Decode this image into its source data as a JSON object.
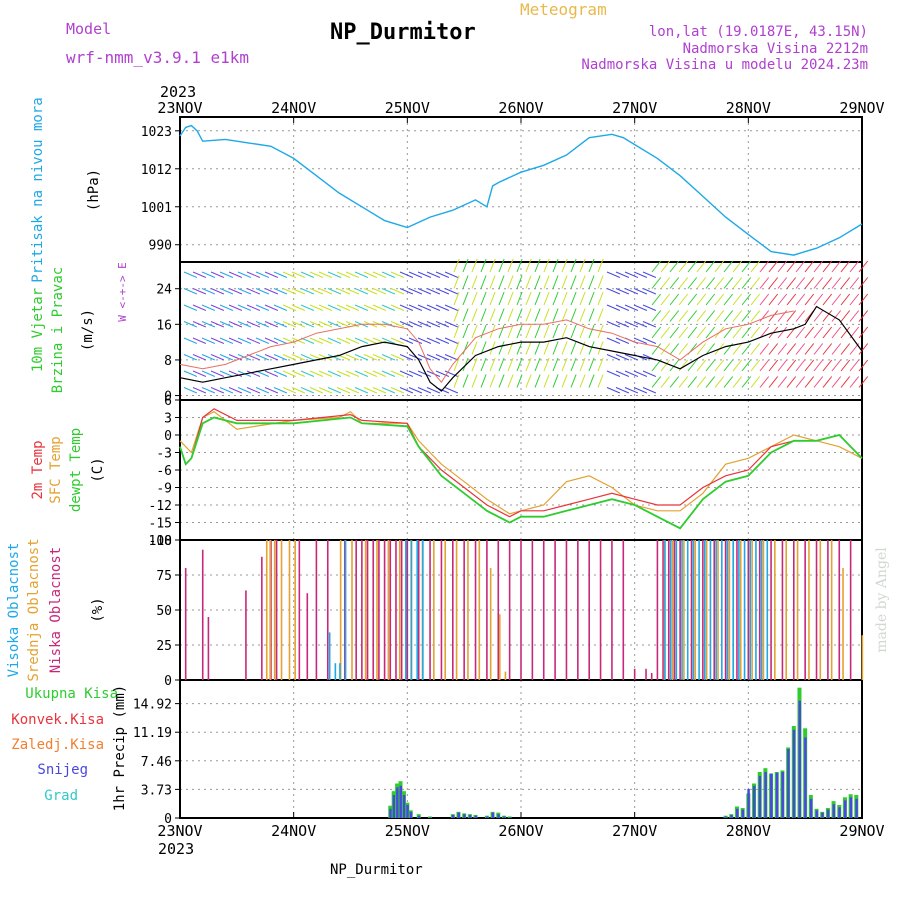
{
  "header": {
    "title": "NP_Durmitor",
    "meteogram": "Meteogram",
    "model_label": "Model",
    "model_name": "wrf-nmm_v3.9.1 e1km",
    "lonlat": "lon,lat (19.0187E, 43.15N)",
    "elevation": "Nadmorska Visina 2212m",
    "elevation_model": "Nadmorska Visina u modelu 2024.23m",
    "footer": "NP_Durmitor",
    "watermark": "made by Angel"
  },
  "colors": {
    "pressure": "#1fa8e8",
    "temp2m": "#e8343c",
    "sfc": "#e3a232",
    "dewpt": "#2fcc2f",
    "high": "#1fa8e8",
    "mid": "#e3a232",
    "low": "#c8287a",
    "total_precip": "#2fcc2f",
    "convective": "#e8343c",
    "freezing": "#f08030",
    "snow": "#4848e0",
    "graupel": "#30c8c8"
  },
  "chart_data": [
    {
      "type": "line",
      "panel": "pressure",
      "ylabel_colored": [
        "Pritisak na nivou mora"
      ],
      "ylabel": "(hPa)",
      "x_top_year": "2023",
      "x_bottom_year": "2023",
      "x_tick_labels": [
        "23NOV",
        "24NOV",
        "25NOV",
        "26NOV",
        "27NOV",
        "28NOV",
        "29NOV"
      ],
      "y_ticks": [
        990,
        1001,
        1012,
        1023
      ],
      "ylim": [
        985,
        1027
      ],
      "series": [
        {
          "key": "pressure",
          "x": [
            0,
            0.05,
            0.1,
            0.15,
            0.2,
            0.4,
            0.6,
            0.8,
            1.0,
            1.2,
            1.4,
            1.6,
            1.8,
            2.0,
            2.2,
            2.4,
            2.6,
            2.7,
            2.75,
            2.8,
            3.0,
            3.2,
            3.4,
            3.6,
            3.8,
            3.9,
            4.0,
            4.2,
            4.4,
            4.6,
            4.8,
            5.0,
            5.2,
            5.4,
            5.5,
            5.6,
            5.8,
            6.0
          ],
          "values": [
            1021.5,
            1024,
            1024.5,
            1023,
            1020,
            1020.5,
            1019.5,
            1018.5,
            1015,
            1010,
            1005,
            1001,
            997,
            995,
            998,
            1000,
            1003,
            1001,
            1007,
            1008,
            1011,
            1013,
            1016,
            1021,
            1022,
            1021,
            1019,
            1015,
            1010,
            1004,
            998,
            993,
            988,
            987,
            988,
            989,
            992,
            996
          ]
        }
      ]
    },
    {
      "type": "line",
      "panel": "wind",
      "ylabel_colored": [
        "10m Vjetar",
        "Brzina i Pravac"
      ],
      "ylabel": "(m/s)",
      "compass": "W <-+-> E",
      "y_ticks": [
        0,
        8,
        16,
        24
      ],
      "ylim": [
        -1,
        30
      ],
      "series": [
        {
          "key": "speed",
          "x": [
            0,
            0.2,
            0.4,
            0.6,
            0.8,
            1.0,
            1.2,
            1.4,
            1.6,
            1.8,
            2.0,
            2.1,
            2.2,
            2.3,
            2.4,
            2.6,
            2.8,
            3.0,
            3.2,
            3.4,
            3.6,
            3.8,
            4.0,
            4.2,
            4.4,
            4.6,
            4.8,
            5.0,
            5.2,
            5.4,
            5.5,
            5.6,
            5.8,
            6.0
          ],
          "values": [
            4,
            3,
            4,
            5,
            6,
            7,
            8,
            9,
            11,
            12,
            11,
            8,
            3,
            1,
            4,
            9,
            11,
            12,
            12,
            13,
            11,
            10,
            9,
            8,
            6,
            9,
            11,
            12,
            14,
            15,
            16,
            20,
            17,
            10
          ]
        },
        {
          "key": "gust",
          "x": [
            0,
            0.2,
            0.4,
            0.6,
            0.8,
            1.0,
            1.2,
            1.4,
            1.6,
            1.8,
            2.0,
            2.1,
            2.2,
            2.3,
            2.4,
            2.6,
            2.8,
            3.0,
            3.2,
            3.4,
            3.6,
            3.8,
            4.0,
            4.2,
            4.4,
            4.6,
            4.8,
            5.0,
            5.2,
            5.4
          ],
          "values": [
            7,
            6,
            7,
            9,
            11,
            12,
            14,
            15,
            16,
            16,
            15,
            12,
            6,
            3,
            7,
            13,
            15,
            16,
            16,
            17,
            15,
            14,
            12,
            11,
            8,
            12,
            15,
            16,
            18,
            19
          ]
        }
      ]
    },
    {
      "type": "line",
      "panel": "temperature",
      "ylabel_colored": [
        "2m Temp",
        "SFC Temp",
        "dewpt Temp"
      ],
      "ylabel": "(C)",
      "y_ticks": [
        6,
        3,
        0,
        -3,
        -6,
        -9,
        -12,
        -15,
        -18
      ],
      "ylim": [
        -18,
        6
      ],
      "series": [
        {
          "key": "temp2m",
          "x": [
            0,
            0.05,
            0.1,
            0.2,
            0.3,
            0.5,
            1.0,
            1.5,
            1.6,
            2.0,
            2.1,
            2.3,
            2.5,
            2.7,
            2.9,
            3.0,
            3.2,
            3.4,
            3.6,
            3.8,
            4.0,
            4.2,
            4.4,
            4.6,
            4.8,
            5.0,
            5.2,
            5.4,
            5.6,
            5.8,
            6.0
          ],
          "values": [
            -2,
            -5,
            -4,
            3,
            4.5,
            2.5,
            2.5,
            3.5,
            2.5,
            2,
            -2,
            -6,
            -9,
            -12,
            -14,
            -13,
            -13,
            -12,
            -11,
            -10,
            -11,
            -12,
            -12,
            -9,
            -7,
            -6,
            -2,
            -1,
            -1,
            0,
            -4
          ]
        },
        {
          "key": "sfc",
          "x": [
            0,
            0.1,
            0.2,
            0.3,
            0.5,
            1.0,
            1.4,
            1.5,
            1.6,
            2.0,
            2.1,
            2.3,
            2.5,
            2.7,
            2.9,
            3.0,
            3.2,
            3.4,
            3.6,
            3.8,
            4.0,
            4.2,
            4.4,
            4.6,
            4.8,
            5.0,
            5.2,
            5.4,
            5.6,
            5.8,
            6.0
          ],
          "values": [
            -1,
            -3,
            3,
            4,
            1,
            2.5,
            3,
            4,
            2,
            2,
            -1,
            -5,
            -8,
            -11,
            -13.5,
            -13,
            -12,
            -8,
            -7,
            -9,
            -12,
            -13,
            -13,
            -10,
            -5,
            -4,
            -2,
            0,
            -1,
            -2,
            -4
          ]
        },
        {
          "key": "dewpt",
          "x": [
            0,
            0.05,
            0.1,
            0.2,
            0.3,
            0.5,
            1.0,
            1.5,
            1.6,
            2.0,
            2.1,
            2.3,
            2.5,
            2.7,
            2.9,
            3.0,
            3.2,
            3.4,
            3.6,
            3.8,
            4.0,
            4.2,
            4.4,
            4.6,
            4.8,
            5.0,
            5.2,
            5.4,
            5.6,
            5.8,
            6.0
          ],
          "values": [
            -2,
            -5,
            -4,
            2,
            3,
            2,
            2,
            3,
            2,
            1.5,
            -2,
            -7,
            -10,
            -13,
            -15,
            -14,
            -14,
            -13,
            -12,
            -11,
            -12,
            -14,
            -16,
            -11,
            -8,
            -7,
            -3,
            -1,
            -1,
            0,
            -4
          ]
        }
      ]
    },
    {
      "type": "bar",
      "panel": "clouds",
      "ylabel_colored": [
        "Visoka Oblacnost",
        "Srednja Oblacnost",
        "Niska Oblacnost"
      ],
      "ylabel": "(%)",
      "y_ticks": [
        0,
        25,
        50,
        75,
        100
      ],
      "ylim": [
        0,
        100
      ],
      "low_x": [
        0.05,
        0.2,
        0.25,
        0.58,
        0.72,
        0.8,
        0.85,
        1.05,
        1.12,
        1.2,
        1.3,
        1.45,
        1.55,
        1.6,
        1.65,
        1.7,
        1.75,
        1.8,
        1.85,
        1.9,
        1.95,
        2.0,
        2.1,
        2.2,
        2.3,
        2.4,
        2.5,
        2.6,
        2.7,
        2.8,
        2.9,
        3.0,
        3.1,
        3.2,
        3.3,
        3.4,
        3.5,
        3.6,
        3.7,
        3.8,
        3.9,
        4.0,
        4.1,
        4.15,
        4.2,
        4.25,
        4.3,
        4.35,
        4.4,
        4.5,
        4.6,
        4.7,
        4.8,
        4.9,
        5.0,
        5.1,
        5.2,
        5.3,
        5.4,
        5.5,
        5.6,
        5.7,
        5.8,
        5.9
      ],
      "low_values": [
        80,
        93,
        45,
        64,
        88,
        100,
        100,
        100,
        62,
        100,
        100,
        100,
        100,
        100,
        100,
        100,
        100,
        100,
        100,
        100,
        100,
        100,
        100,
        100,
        100,
        100,
        100,
        100,
        100,
        100,
        100,
        100,
        100,
        100,
        100,
        100,
        100,
        100,
        100,
        100,
        100,
        8,
        8,
        5,
        100,
        100,
        100,
        100,
        100,
        100,
        100,
        100,
        100,
        100,
        100,
        100,
        100,
        100,
        100,
        100,
        100,
        100,
        100,
        100
      ],
      "mid_x": [
        0.75,
        0.78,
        0.82,
        0.88,
        0.95,
        1.0,
        1.4,
        1.5,
        1.62,
        1.72,
        1.82,
        1.92,
        2.02,
        2.12,
        2.22,
        2.32,
        2.42,
        2.52,
        2.62,
        2.72,
        2.8,
        2.85,
        4.25,
        4.32,
        4.42,
        4.52,
        4.62,
        4.72,
        4.82,
        4.92,
        5.02,
        5.12,
        5.22,
        5.32,
        5.42,
        5.52,
        5.62,
        5.72,
        5.82,
        5.99
      ],
      "mid_values": [
        100,
        100,
        100,
        100,
        100,
        100,
        100,
        100,
        100,
        100,
        100,
        100,
        100,
        100,
        100,
        100,
        100,
        100,
        100,
        80,
        47,
        6,
        100,
        100,
        100,
        100,
        100,
        100,
        100,
        100,
        100,
        100,
        100,
        100,
        100,
        100,
        100,
        100,
        80,
        32
      ],
      "high_x": [
        1.33,
        1.38,
        1.42,
        1.47,
        2.0,
        2.05,
        2.1,
        2.15,
        4.28,
        4.33,
        4.38,
        4.43,
        4.48,
        4.53,
        4.58,
        4.63,
        4.68,
        4.73,
        4.78,
        4.83,
        4.88,
        4.93,
        4.98,
        5.03,
        5.08,
        5.13,
        5.18
      ],
      "high_values": [
        34,
        12,
        12,
        100,
        100,
        100,
        100,
        100,
        100,
        100,
        100,
        100,
        100,
        100,
        100,
        100,
        100,
        100,
        100,
        100,
        100,
        100,
        100,
        100,
        100,
        100,
        100
      ]
    },
    {
      "type": "bar",
      "panel": "precip",
      "ylabel_colored": [
        "Ukupna Kisa",
        "Konvek.Kisa",
        "Zaledj.Kisa",
        "Snijeg",
        "Grad"
      ],
      "ylabel": "1hr Precip (mm)",
      "y_ticks": [
        0,
        3.73,
        7.46,
        11.19,
        14.92
      ],
      "ylim": [
        0,
        18
      ],
      "x": [
        1.85,
        1.88,
        1.91,
        1.94,
        1.97,
        2.0,
        2.03,
        2.1,
        2.2,
        2.4,
        2.45,
        2.5,
        2.55,
        2.6,
        2.7,
        2.75,
        2.8,
        2.85,
        2.9,
        4.8,
        4.85,
        4.9,
        4.95,
        5.0,
        5.05,
        5.1,
        5.15,
        5.2,
        5.25,
        5.3,
        5.35,
        5.4,
        5.45,
        5.5,
        5.55,
        5.6,
        5.65,
        5.7,
        5.75,
        5.8,
        5.85,
        5.9,
        5.95
      ],
      "total": [
        1.6,
        3.5,
        4.5,
        4.8,
        3.5,
        2,
        1,
        0.5,
        0.2,
        0.5,
        0.8,
        0.6,
        0.5,
        0.4,
        0.3,
        0.8,
        0.7,
        0.3,
        0.2,
        0.3,
        0.5,
        1.5,
        1.3,
        3.2,
        4.5,
        6,
        6.5,
        5.8,
        6,
        6.2,
        9.2,
        12,
        17,
        11.7,
        3,
        1.2,
        0.8,
        1.3,
        2.2,
        1.7,
        2.7,
        3.1,
        3
      ],
      "snow": [
        1.2,
        3,
        4,
        4.2,
        3,
        1.7,
        0.8,
        0.3,
        0.1,
        0.4,
        0.7,
        0.5,
        0.4,
        0.3,
        0.2,
        0.7,
        0.5,
        0.2,
        0.1,
        0.2,
        0.4,
        1.2,
        1.1,
        3.8,
        4.2,
        5.5,
        6,
        5.8,
        5.9,
        6,
        9,
        11.5,
        15.3,
        10.5,
        2.5,
        1,
        0.7,
        1.1,
        1.8,
        1.4,
        2.3,
        2.7,
        2.5
      ]
    }
  ]
}
